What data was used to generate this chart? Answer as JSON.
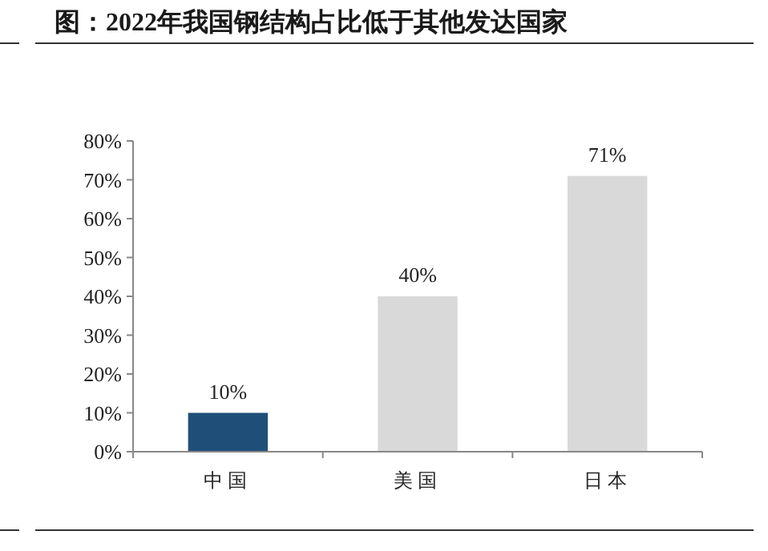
{
  "chart_data": {
    "type": "bar",
    "title": "图：2022年我国钢结构占比低于其他发达国家",
    "categories": [
      "中国",
      "美国",
      "日本"
    ],
    "values": [
      10,
      40,
      71
    ],
    "colors": [
      "#1f4e79",
      "#d9d9d9",
      "#d9d9d9"
    ],
    "value_labels": [
      "10%",
      "40%",
      "71%"
    ],
    "ylim": [
      0,
      80
    ],
    "yticks": [
      {
        "value": 0,
        "label": "0%"
      },
      {
        "value": 10,
        "label": "10%"
      },
      {
        "value": 20,
        "label": "20%"
      },
      {
        "value": 30,
        "label": "30%"
      },
      {
        "value": 40,
        "label": "40%"
      },
      {
        "value": 50,
        "label": "50%"
      },
      {
        "value": 60,
        "label": "60%"
      },
      {
        "value": 70,
        "label": "70%"
      },
      {
        "value": 80,
        "label": "80%"
      }
    ]
  }
}
